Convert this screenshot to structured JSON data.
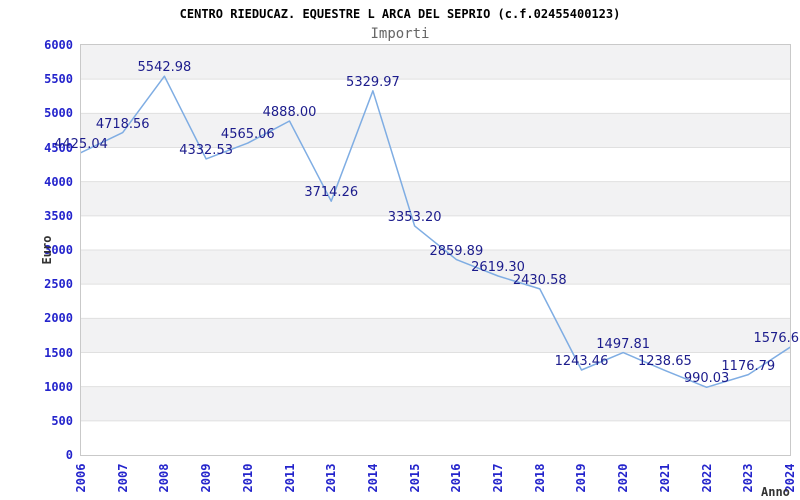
{
  "chart_data": {
    "type": "line",
    "title": "CENTRO RIEDUCAZ. EQUESTRE L ARCA DEL SEPRIO (c.f.02455400123)",
    "subtitle": "Importi",
    "xlabel": "Anno",
    "ylabel": "Euro",
    "x": [
      "2006",
      "2007",
      "2008",
      "2009",
      "2010",
      "2011",
      "2013",
      "2014",
      "2015",
      "2016",
      "2017",
      "2018",
      "2019",
      "2020",
      "2021",
      "2022",
      "2023",
      "2024"
    ],
    "values": [
      4425.04,
      4718.56,
      5542.98,
      4332.53,
      4565.06,
      4888.0,
      3714.26,
      5329.97,
      3353.2,
      2859.89,
      2619.3,
      2430.58,
      1243.46,
      1497.81,
      1238.65,
      990.03,
      1176.79,
      1576.6
    ],
    "point_labels": [
      "4425.04",
      "4718.56",
      "5542.98",
      "4332.53",
      "4565.06",
      "4888.00",
      "3714.26",
      "5329.97",
      "3353.20",
      "2859.89",
      "2619.30",
      "2430.58",
      "1243.46",
      "1497.81",
      "1238.65",
      "990.03",
      "1176.79",
      "1576.6"
    ],
    "ylim": [
      0,
      6000
    ],
    "ytick_step": 500,
    "yticks": [
      "0",
      "500",
      "1000",
      "1500",
      "2000",
      "2500",
      "3000",
      "3500",
      "4000",
      "4500",
      "5000",
      "5500",
      "6000"
    ],
    "grid": "horizontal",
    "background_bands": "alternating gray/white, gray topmost",
    "legend": "none",
    "colors": {
      "line": "#7fade3",
      "band": "#f2f2f3",
      "band_alt": "#ffffff",
      "grid": "#e0e0e0",
      "border": "#c9c9c9",
      "tick_text": "#2424cc",
      "point_label_text": "#1c1c8c",
      "title_text": "#000000",
      "subtitle_text": "#666666",
      "axis_title_text": "#333333"
    }
  }
}
